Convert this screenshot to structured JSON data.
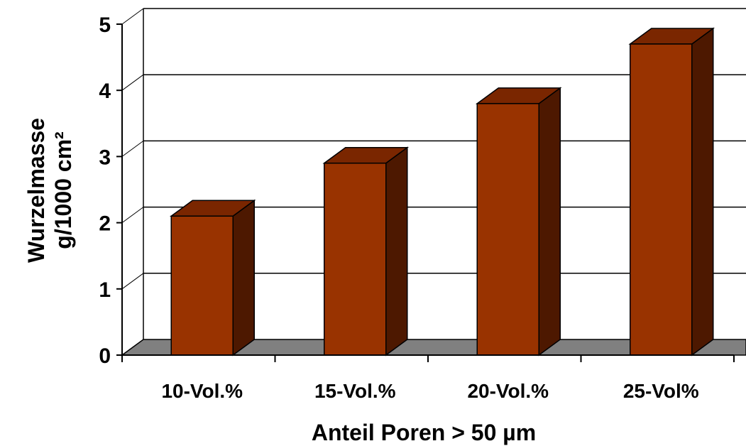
{
  "chart_data": {
    "type": "bar",
    "style": "3d",
    "categories": [
      "10-Vol.%",
      "15-Vol.%",
      "20-Vol.%",
      "25-Vol%"
    ],
    "values": [
      2.1,
      2.9,
      3.8,
      4.7
    ],
    "xlabel": "Anteil Poren > 50 µm",
    "ylabel_lines": [
      "Wurzelmasse",
      "g/1000 cm²"
    ],
    "ylim": [
      0,
      5
    ],
    "yticks": [
      0,
      1,
      2,
      3,
      4,
      5
    ],
    "grid": true,
    "colors": {
      "bar_front": "#993300",
      "bar_top": "#7a2600",
      "bar_side": "#4d1800",
      "floor": "#808080",
      "grid": "#000000"
    }
  }
}
